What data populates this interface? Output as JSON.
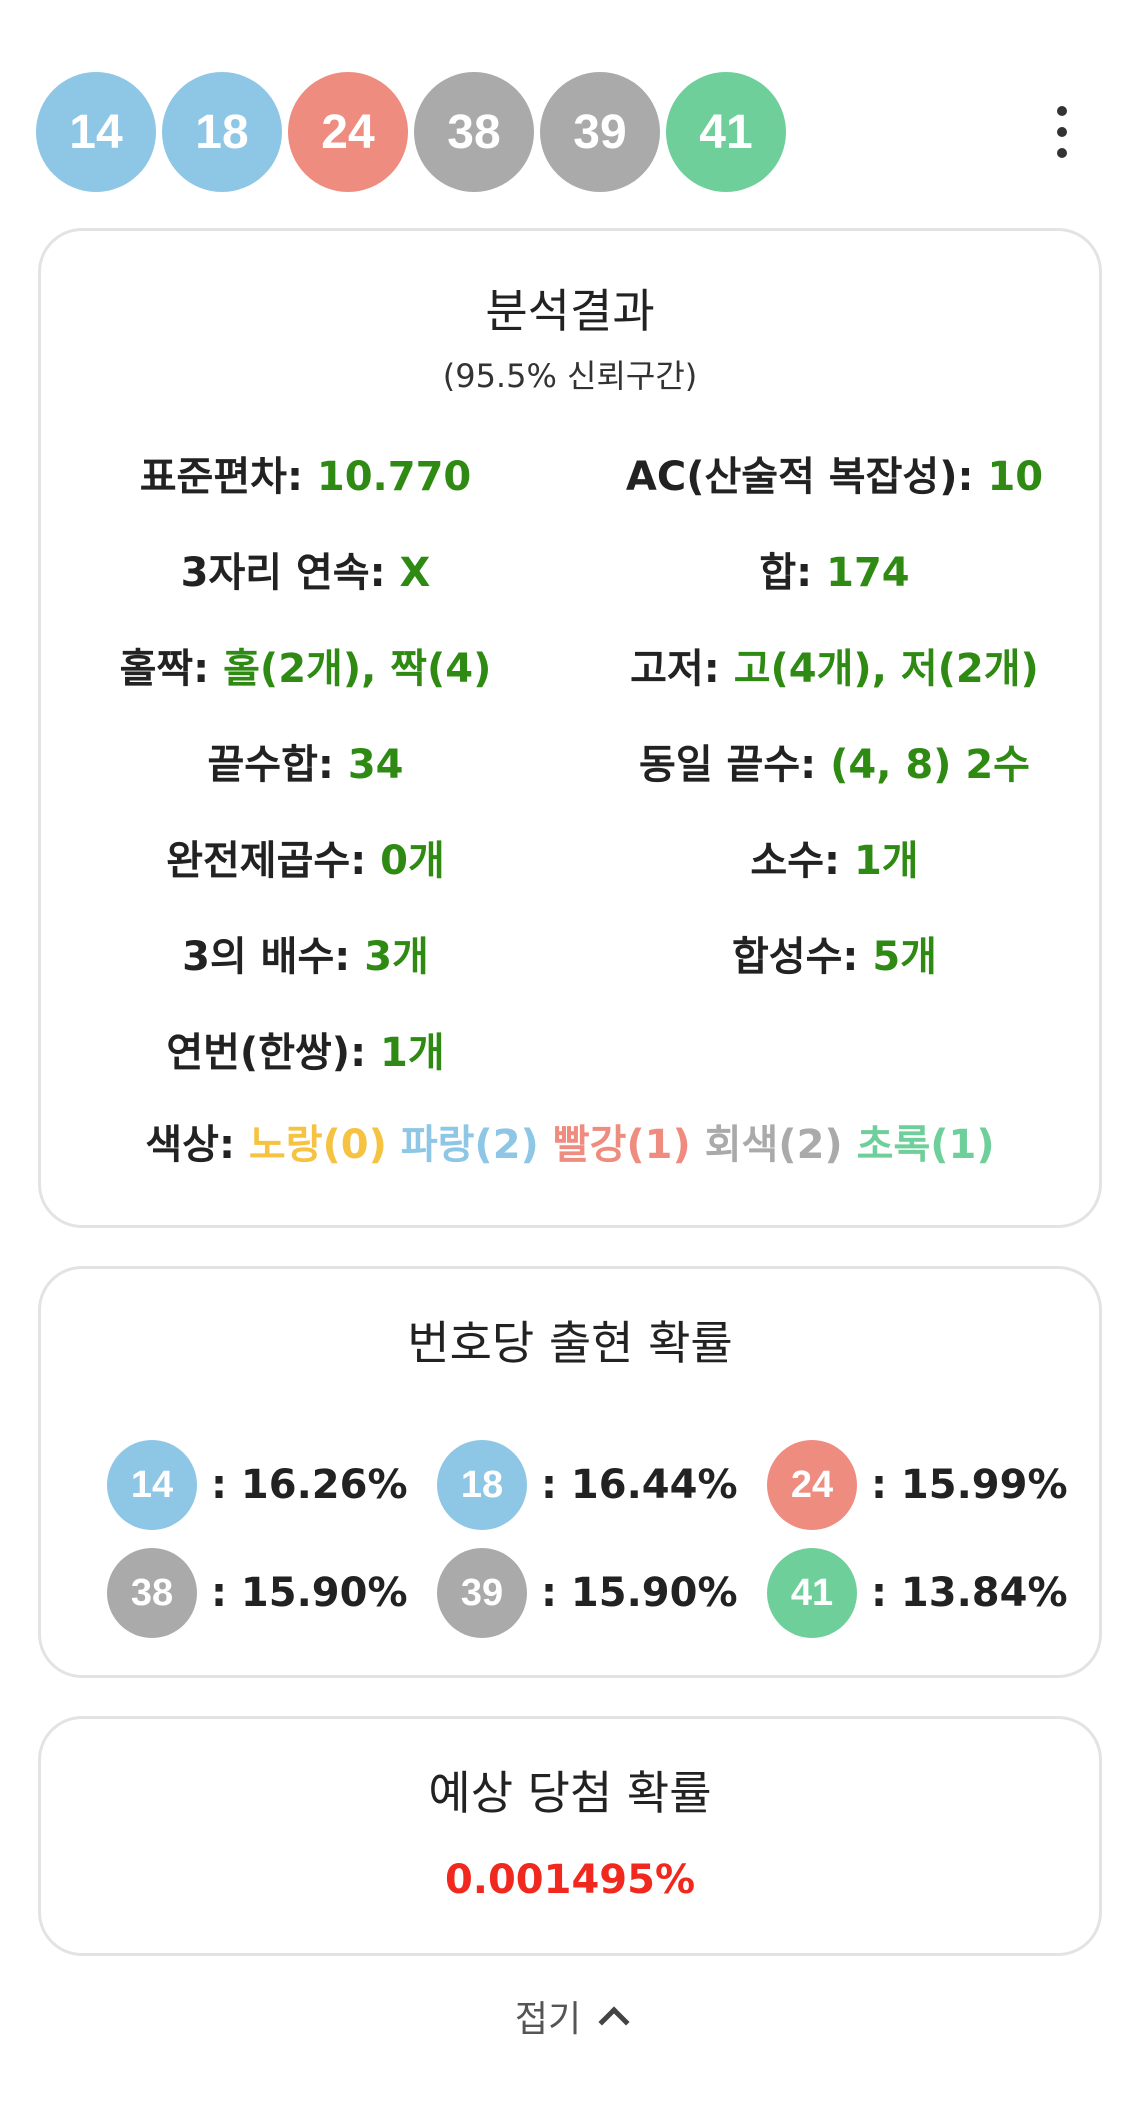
{
  "numbers": [
    {
      "num": "14",
      "color": "blue"
    },
    {
      "num": "18",
      "color": "blue"
    },
    {
      "num": "24",
      "color": "red"
    },
    {
      "num": "38",
      "color": "gray"
    },
    {
      "num": "39",
      "color": "gray"
    },
    {
      "num": "41",
      "color": "green"
    }
  ],
  "colors": {
    "blue": "#8ec6e6",
    "red": "#ef8c80",
    "gray": "#aaaaaa",
    "green": "#6fcf9b",
    "yellow": "#f5c242",
    "value_green": "#2e8a12",
    "win_red": "#f0281e"
  },
  "menu": {
    "icon": "more-vertical-icon"
  },
  "analysis": {
    "title": "분석결과",
    "subtitle": "(95.5% 신뢰구간)",
    "rows": [
      [
        {
          "label": "표준편차:",
          "value": "10.770"
        },
        {
          "label": "AC(산술적 복잡성):",
          "value": "10"
        }
      ],
      [
        {
          "label": "3자리 연속:",
          "value": "X"
        },
        {
          "label": "합:",
          "value": "174"
        }
      ],
      [
        {
          "label": "홀짝:",
          "value": "홀(2개), 짝(4)"
        },
        {
          "label": "고저:",
          "value": "고(4개), 저(2개)"
        }
      ],
      [
        {
          "label": "끝수합:",
          "value": "34"
        },
        {
          "label": "동일 끝수:",
          "value": "(4, 8) 2수"
        }
      ],
      [
        {
          "label": "완전제곱수:",
          "value": "0개"
        },
        {
          "label": "소수:",
          "value": "1개"
        }
      ],
      [
        {
          "label": "3의 배수:",
          "value": "3개"
        },
        {
          "label": "합성수:",
          "value": "5개"
        }
      ],
      [
        {
          "label": "연번(한쌍):",
          "value": "1개"
        }
      ]
    ],
    "color_line": {
      "label": "색상:",
      "yellow": "노랑(0)",
      "blue": "파랑(2)",
      "red": "빨강(1)",
      "gray": "회색(2)",
      "green": "초록(1)"
    }
  },
  "probability": {
    "title": "번호당 출현 확률",
    "items": [
      {
        "num": "14",
        "color": "blue",
        "text": ": 16.26%"
      },
      {
        "num": "18",
        "color": "blue",
        "text": ": 16.44%"
      },
      {
        "num": "24",
        "color": "red",
        "text": ": 15.99%"
      },
      {
        "num": "38",
        "color": "gray",
        "text": ": 15.90%"
      },
      {
        "num": "39",
        "color": "gray",
        "text": ": 15.90%"
      },
      {
        "num": "41",
        "color": "green",
        "text": ": 13.84%"
      }
    ]
  },
  "win": {
    "title": "예상 당첨 확률",
    "value": "0.001495%"
  },
  "collapse": {
    "label": "접기",
    "icon": "chevron-up-icon"
  }
}
